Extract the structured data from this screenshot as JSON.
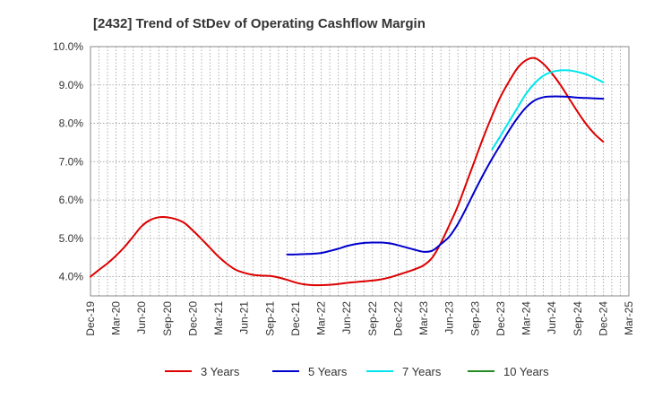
{
  "chart_data": {
    "type": "line",
    "title": "[2432]  Trend of StDev of Operating Cashflow Margin",
    "xlabel": "",
    "ylabel": "",
    "x_tick_labels": [
      "Dec-19",
      "Mar-20",
      "Jun-20",
      "Sep-20",
      "Dec-20",
      "Mar-21",
      "Jun-21",
      "Sep-21",
      "Dec-21",
      "Mar-22",
      "Jun-22",
      "Sep-22",
      "Dec-22",
      "Mar-23",
      "Jun-23",
      "Sep-23",
      "Dec-23",
      "Mar-24",
      "Jun-24",
      "Sep-24",
      "Dec-24",
      "Mar-25"
    ],
    "y_tick_labels": [
      "4.0%",
      "5.0%",
      "6.0%",
      "7.0%",
      "8.0%",
      "9.0%",
      "10.0%"
    ],
    "y_ticks": [
      4,
      5,
      6,
      7,
      8,
      9,
      10
    ],
    "ylim": [
      3.5,
      10.0
    ],
    "grid": true,
    "legend_position": "bottom",
    "series": [
      {
        "name": "3 Years",
        "color": "#dd0000",
        "points": [
          [
            "Dec-19",
            4.0
          ],
          [
            "Jan-20",
            4.18
          ],
          [
            "Feb-20",
            4.35
          ],
          [
            "Mar-20",
            4.55
          ],
          [
            "Apr-20",
            4.78
          ],
          [
            "May-20",
            5.05
          ],
          [
            "Jun-20",
            5.32
          ],
          [
            "Jul-20",
            5.48
          ],
          [
            "Aug-20",
            5.55
          ],
          [
            "Sep-20",
            5.55
          ],
          [
            "Oct-20",
            5.5
          ],
          [
            "Nov-20",
            5.4
          ],
          [
            "Dec-20",
            5.2
          ],
          [
            "Jan-21",
            4.98
          ],
          [
            "Feb-21",
            4.75
          ],
          [
            "Mar-21",
            4.52
          ],
          [
            "Apr-21",
            4.33
          ],
          [
            "May-21",
            4.18
          ],
          [
            "Jun-21",
            4.1
          ],
          [
            "Jul-21",
            4.05
          ],
          [
            "Aug-21",
            4.03
          ],
          [
            "Sep-21",
            4.02
          ],
          [
            "Oct-21",
            3.98
          ],
          [
            "Nov-21",
            3.92
          ],
          [
            "Dec-21",
            3.85
          ],
          [
            "Jan-22",
            3.8
          ],
          [
            "Feb-22",
            3.78
          ],
          [
            "Mar-22",
            3.78
          ],
          [
            "Apr-22",
            3.79
          ],
          [
            "May-22",
            3.81
          ],
          [
            "Jun-22",
            3.84
          ],
          [
            "Jul-22",
            3.86
          ],
          [
            "Aug-22",
            3.88
          ],
          [
            "Sep-22",
            3.9
          ],
          [
            "Oct-22",
            3.93
          ],
          [
            "Nov-22",
            3.98
          ],
          [
            "Dec-22",
            4.05
          ],
          [
            "Jan-23",
            4.12
          ],
          [
            "Feb-23",
            4.2
          ],
          [
            "Mar-23",
            4.3
          ],
          [
            "Apr-23",
            4.5
          ],
          [
            "May-23",
            4.88
          ],
          [
            "Jun-23",
            5.35
          ],
          [
            "Jul-23",
            5.85
          ],
          [
            "Aug-23",
            6.45
          ],
          [
            "Sep-23",
            7.05
          ],
          [
            "Oct-23",
            7.65
          ],
          [
            "Nov-23",
            8.2
          ],
          [
            "Dec-23",
            8.7
          ],
          [
            "Jan-24",
            9.1
          ],
          [
            "Feb-24",
            9.45
          ],
          [
            "Mar-24",
            9.65
          ],
          [
            "Apr-24",
            9.7
          ],
          [
            "May-24",
            9.55
          ],
          [
            "Jun-24",
            9.3
          ],
          [
            "Jul-24",
            9.0
          ],
          [
            "Aug-24",
            8.65
          ],
          [
            "Sep-24",
            8.3
          ],
          [
            "Oct-24",
            7.98
          ],
          [
            "Nov-24",
            7.72
          ],
          [
            "Dec-24",
            7.52
          ]
        ]
      },
      {
        "name": "5 Years",
        "color": "#0000cc",
        "points": [
          [
            "Nov-21",
            4.58
          ],
          [
            "Dec-21",
            4.58
          ],
          [
            "Jan-22",
            4.59
          ],
          [
            "Feb-22",
            4.6
          ],
          [
            "Mar-22",
            4.62
          ],
          [
            "Apr-22",
            4.67
          ],
          [
            "May-22",
            4.73
          ],
          [
            "Jun-22",
            4.8
          ],
          [
            "Jul-22",
            4.85
          ],
          [
            "Aug-22",
            4.88
          ],
          [
            "Sep-22",
            4.89
          ],
          [
            "Oct-22",
            4.89
          ],
          [
            "Nov-22",
            4.87
          ],
          [
            "Dec-22",
            4.82
          ],
          [
            "Jan-23",
            4.76
          ],
          [
            "Feb-23",
            4.7
          ],
          [
            "Mar-23",
            4.65
          ],
          [
            "Apr-23",
            4.68
          ],
          [
            "May-23",
            4.85
          ],
          [
            "Jun-23",
            5.05
          ],
          [
            "Jul-23",
            5.38
          ],
          [
            "Aug-23",
            5.8
          ],
          [
            "Sep-23",
            6.25
          ],
          [
            "Oct-23",
            6.68
          ],
          [
            "Nov-23",
            7.08
          ],
          [
            "Dec-23",
            7.45
          ],
          [
            "Jan-24",
            7.82
          ],
          [
            "Feb-24",
            8.15
          ],
          [
            "Mar-24",
            8.42
          ],
          [
            "Apr-24",
            8.6
          ],
          [
            "May-24",
            8.68
          ],
          [
            "Jun-24",
            8.7
          ],
          [
            "Jul-24",
            8.7
          ],
          [
            "Aug-24",
            8.69
          ],
          [
            "Sep-24",
            8.67
          ],
          [
            "Oct-24",
            8.66
          ],
          [
            "Nov-24",
            8.65
          ],
          [
            "Dec-24",
            8.64
          ]
        ]
      },
      {
        "name": "7 Years",
        "color": "#00e5ee",
        "points": [
          [
            "Nov-23",
            7.32
          ],
          [
            "Dec-23",
            7.68
          ],
          [
            "Jan-24",
            8.05
          ],
          [
            "Feb-24",
            8.42
          ],
          [
            "Mar-24",
            8.78
          ],
          [
            "Apr-24",
            9.05
          ],
          [
            "May-24",
            9.24
          ],
          [
            "Jun-24",
            9.34
          ],
          [
            "Jul-24",
            9.38
          ],
          [
            "Aug-24",
            9.38
          ],
          [
            "Sep-24",
            9.34
          ],
          [
            "Oct-24",
            9.28
          ],
          [
            "Nov-24",
            9.18
          ],
          [
            "Dec-24",
            9.07
          ]
        ]
      },
      {
        "name": "10 Years",
        "color": "#228b22",
        "points": []
      }
    ]
  }
}
